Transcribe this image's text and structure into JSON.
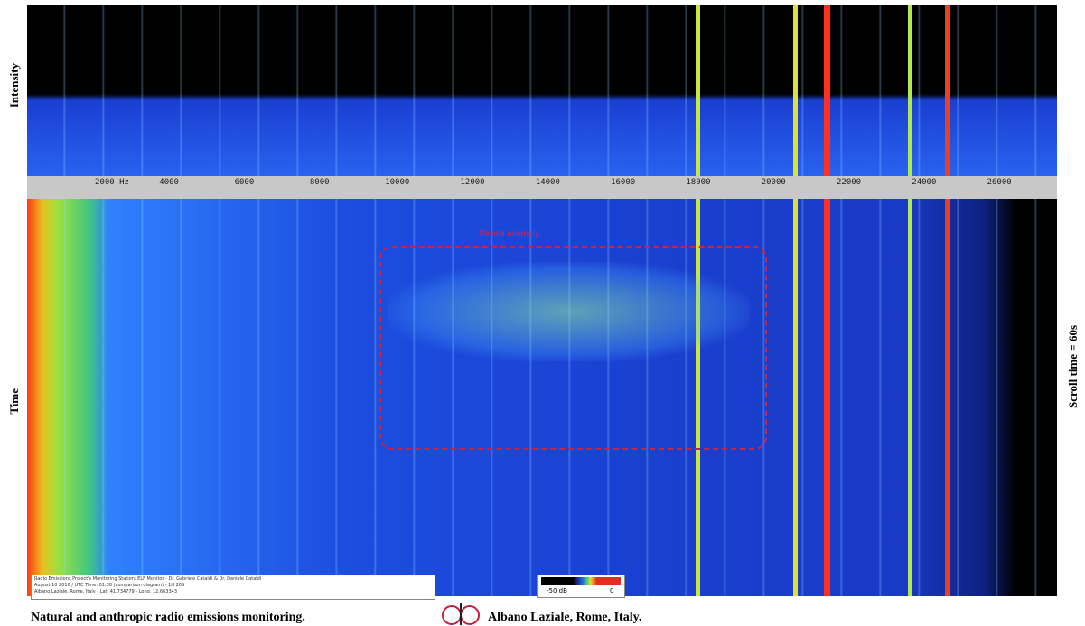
{
  "panel": {
    "intensity_label": "Intensity",
    "time_label": "Time",
    "scroll_label": "Scroll time = 60s",
    "annotation": "Plasma Anomaly",
    "freq_labels": [
      "2000 Hz",
      "4000",
      "6000",
      "8000",
      "10000",
      "12000",
      "14000",
      "16000",
      "18000",
      "20000",
      "22000",
      "24000",
      "26000"
    ],
    "info_lines": [
      "Radio Emissions Project's Monitoring Station: ELF Monitor - Dr. Gabriele Cataldi & Dr. Daniele Cataldi",
      "August 10 2016 / UTC Time: 01:38 (comparison diagram) - 1H 20S",
      "Albano Laziale, Rome, Italy - Lat. 41.734779 - Long. 12.663343"
    ],
    "scale_labels": [
      "-50 dB",
      "0"
    ]
  },
  "caption": {
    "left": "Natural and anthropic radio emissions monitoring.",
    "right": "Albano Laziale, Rome, Italy."
  }
}
